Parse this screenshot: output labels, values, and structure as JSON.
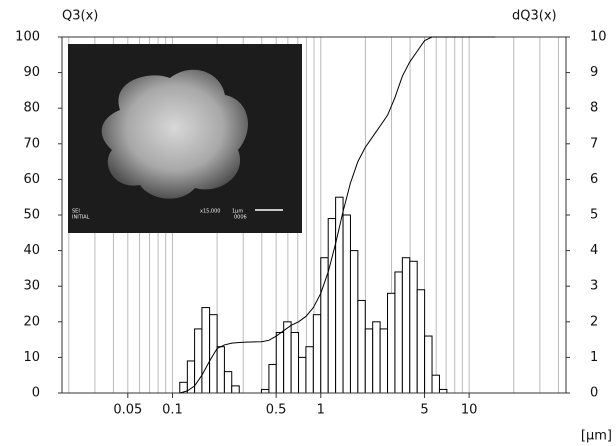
{
  "chart_data": {
    "type": "histogram",
    "y_label": "Q3(x)",
    "y2_label": "dQ3(x)",
    "x_label": "[µm]",
    "log_x": true,
    "grid": true,
    "xlim": [
      0.018,
      45
    ],
    "xticks": [
      0.05,
      0.1,
      0.5,
      1,
      5,
      10
    ],
    "xgrid": [
      0.02,
      0.03,
      0.04,
      0.05,
      0.06,
      0.07,
      0.08,
      0.09,
      0.1,
      0.2,
      0.3,
      0.4,
      0.5,
      0.6,
      0.7,
      0.8,
      0.9,
      1,
      2,
      3,
      4,
      5,
      6,
      7,
      8,
      9,
      10,
      20,
      30,
      40
    ],
    "ylim": [
      0,
      100
    ],
    "yticks": [
      0,
      10,
      20,
      30,
      40,
      50,
      60,
      70,
      80,
      90,
      100
    ],
    "y2lim": [
      0,
      10
    ],
    "y2ticks": [
      0,
      1,
      2,
      3,
      4,
      5,
      6,
      7,
      8,
      9,
      10
    ],
    "bins": [
      0.112,
      0.126,
      0.141,
      0.158,
      0.178,
      0.2,
      0.224,
      0.251,
      0.282,
      0.316,
      0.355,
      0.398,
      0.447,
      0.501,
      0.562,
      0.631,
      0.708,
      0.794,
      0.891,
      1,
      1.122,
      1.259,
      1.413,
      1.585,
      1.778,
      1.995,
      2.239,
      2.512,
      2.818,
      3.162,
      3.548,
      3.981,
      4.467,
      5.012,
      5.623,
      6.31,
      7.079
    ],
    "counts": [
      0.3,
      0.9,
      1.8,
      2.4,
      2.2,
      1.3,
      0.6,
      0.2,
      0,
      0,
      0,
      0.1,
      0.8,
      1.7,
      2.0,
      1.7,
      1.0,
      1.3,
      2.2,
      3.8,
      4.9,
      5.5,
      5.0,
      4.0,
      2.6,
      1.8,
      2.0,
      1.8,
      2.8,
      3.4,
      3.8,
      3.7,
      2.9,
      1.6,
      0.5,
      0.1
    ],
    "counts_axis": "y2",
    "bar_color": "#ffffff",
    "line": {
      "color": "#000000",
      "x": [
        0.112,
        0.126,
        0.141,
        0.158,
        0.178,
        0.2,
        0.224,
        0.251,
        0.282,
        0.316,
        0.398,
        0.447,
        0.501,
        0.562,
        0.631,
        0.708,
        0.794,
        0.891,
        1,
        1.122,
        1.259,
        1.413,
        1.585,
        1.778,
        1.995,
        2.239,
        2.512,
        2.818,
        3.162,
        3.548,
        3.981,
        4.467,
        5.012,
        5.623,
        6.31,
        7.079,
        15
      ],
      "values": [
        0,
        0.6,
        2,
        5,
        9,
        12.5,
        13.5,
        14,
        14.2,
        14.3,
        14.4,
        14.8,
        16,
        17.5,
        19,
        20,
        21.5,
        24,
        28,
        34,
        42,
        51,
        59,
        65,
        69,
        72,
        75,
        78,
        83,
        89,
        93,
        96,
        99,
        100,
        100,
        100,
        100
      ]
    },
    "inset_labels": [
      "SEI",
      "INITIAL",
      "x15,000",
      "1µm",
      "0006"
    ]
  }
}
